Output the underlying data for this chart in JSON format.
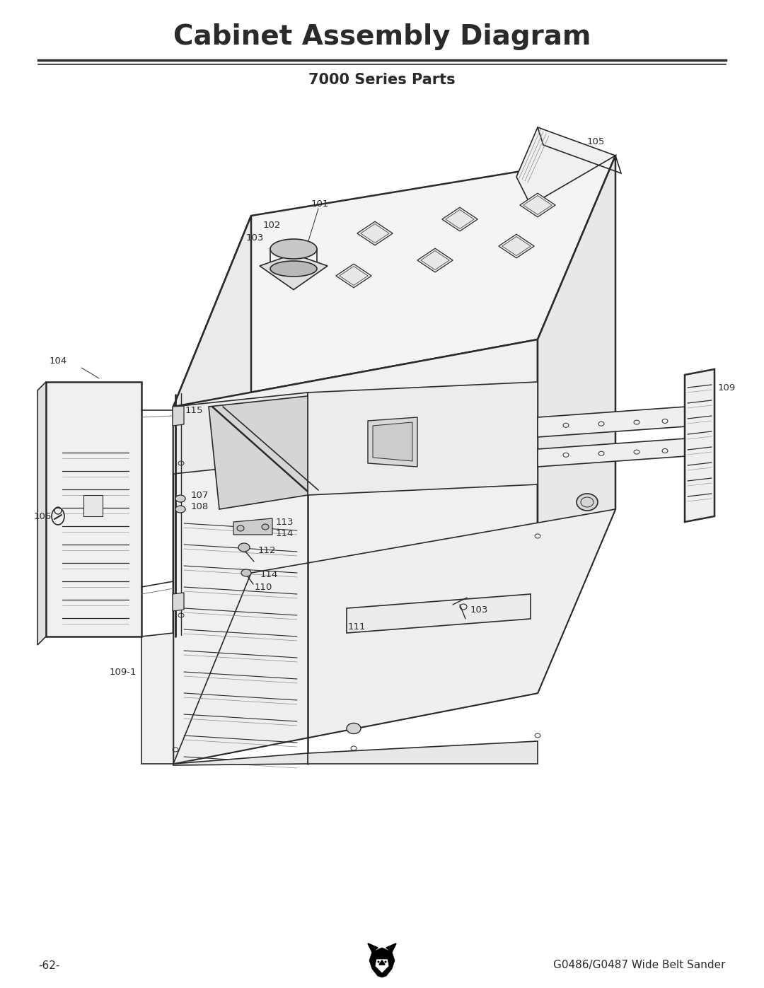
{
  "title": "Cabinet Assembly Diagram",
  "subtitle": "7000 Series Parts",
  "page_number": "-62-",
  "footer_right": "G0486/G0487 Wide Belt Sander",
  "background_color": "#ffffff",
  "line_color": "#2a2a2a",
  "title_fontsize": 28,
  "subtitle_fontsize": 15,
  "footer_fontsize": 11,
  "label_fontsize": 9.5
}
